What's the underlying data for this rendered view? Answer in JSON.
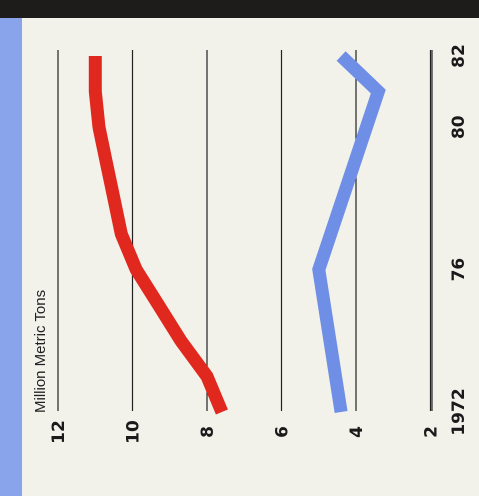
{
  "chart_data": {
    "type": "line",
    "orientation": "rotated-90",
    "ylabel": "Million Metric Tons",
    "ylim": [
      2,
      12
    ],
    "yticks": [
      "2",
      "4",
      "6",
      "8",
      "10",
      "12"
    ],
    "xlim": [
      1972,
      1982
    ],
    "xtick_values": [
      1972,
      1976,
      1980,
      1982
    ],
    "xticks": [
      "1972",
      "76",
      "80",
      "82"
    ],
    "grid": true,
    "series": [
      {
        "color": "#e0281e",
        "x": [
          1972,
          1973,
          1974,
          1975,
          1976,
          1977,
          1978,
          1979,
          1980,
          1981,
          1982
        ],
        "values": [
          7.6,
          8.0,
          8.7,
          9.3,
          9.9,
          10.3,
          10.5,
          10.7,
          10.9,
          11.0,
          11.0
        ]
      },
      {
        "color": "#6f8fe6",
        "x": [
          1972,
          1976,
          1981,
          1982
        ],
        "values": [
          4.4,
          5.0,
          3.4,
          4.4
        ]
      }
    ]
  },
  "frame": {
    "top_band_color": "#1d1c1a",
    "left_band_color": "#8aa4ec"
  }
}
